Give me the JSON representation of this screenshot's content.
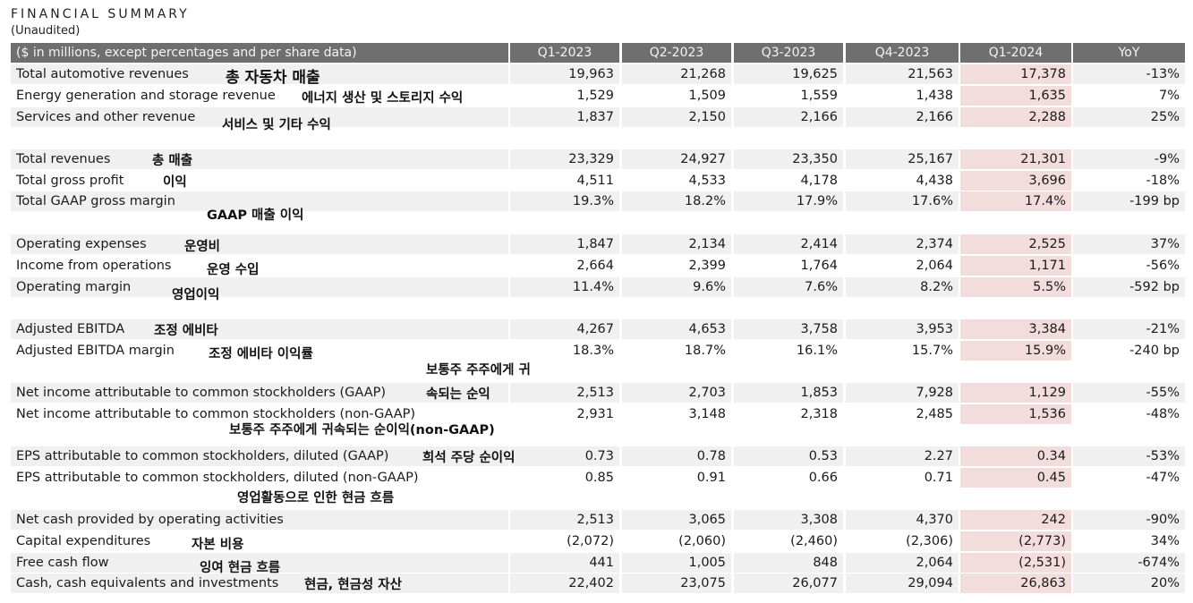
{
  "title": "FINANCIAL SUMMARY",
  "subtitle": "(Unaudited)",
  "header": {
    "label": "($ in millions, except percentages and per share data)",
    "columns": [
      "Q1-2023",
      "Q2-2023",
      "Q3-2023",
      "Q4-2023",
      "Q1-2024",
      "YoY"
    ]
  },
  "rows": [
    {
      "label": "Total automotive revenues",
      "values": [
        "19,963",
        "21,268",
        "19,625",
        "21,563",
        "17,378",
        "-13%"
      ],
      "note": "총 자동차 매출"
    },
    {
      "label": "Energy generation and storage revenue",
      "values": [
        "1,529",
        "1,509",
        "1,559",
        "1,438",
        "1,635",
        "7%"
      ],
      "note": "에너지 생산 및 스토리지 수익"
    },
    {
      "label": "Services and other revenue",
      "values": [
        "1,837",
        "2,150",
        "2,166",
        "2,166",
        "2,288",
        "25%"
      ],
      "note": "서비스 및 기타 수익"
    },
    {
      "label": "Total revenues",
      "values": [
        "23,329",
        "24,927",
        "23,350",
        "25,167",
        "21,301",
        "-9%"
      ],
      "note": "총 매출"
    },
    {
      "label": "Total gross profit",
      "values": [
        "4,511",
        "4,533",
        "4,178",
        "4,438",
        "3,696",
        "-18%"
      ],
      "note": "이익"
    },
    {
      "label": "Total GAAP gross margin",
      "values": [
        "19.3%",
        "18.2%",
        "17.9%",
        "17.6%",
        "17.4%",
        "-199 bp"
      ],
      "note": "GAAP 매출 이익"
    },
    {
      "label": "Operating expenses",
      "values": [
        "1,847",
        "2,134",
        "2,414",
        "2,374",
        "2,525",
        "37%"
      ],
      "note": "운영비"
    },
    {
      "label": "Income from operations",
      "values": [
        "2,664",
        "2,399",
        "1,764",
        "2,064",
        "1,171",
        "-56%"
      ],
      "note": "운영 수입"
    },
    {
      "label": "Operating margin",
      "values": [
        "11.4%",
        "9.6%",
        "7.6%",
        "8.2%",
        "5.5%",
        "-592 bp"
      ],
      "note": "영업이익"
    },
    {
      "label": "Adjusted EBITDA",
      "values": [
        "4,267",
        "4,653",
        "3,758",
        "3,953",
        "3,384",
        "-21%"
      ],
      "note": "조정 에비타"
    },
    {
      "label": "Adjusted EBITDA margin",
      "values": [
        "18.3%",
        "18.7%",
        "16.1%",
        "15.7%",
        "15.9%",
        "-240 bp"
      ],
      "note": "조정 에비타 이익률"
    },
    {
      "label": "Net income attributable to common stockholders (GAAP)",
      "values": [
        "2,513",
        "2,703",
        "1,853",
        "7,928",
        "1,129",
        "-55%"
      ],
      "note_top": "보통주 주주에게 귀",
      "note": "속되는 순익"
    },
    {
      "label": "Net income attributable to common stockholders (non-GAAP)",
      "values": [
        "2,931",
        "3,148",
        "2,318",
        "2,485",
        "1,536",
        "-48%"
      ],
      "note": "보통주 주주에게 귀속되는 순이익(non-GAAP)"
    },
    {
      "label": "EPS attributable to common stockholders, diluted (GAAP)",
      "values": [
        "0.73",
        "0.78",
        "0.53",
        "2.27",
        "0.34",
        "-53%"
      ],
      "note": "희석 주당 순이익"
    },
    {
      "label": "EPS attributable to common stockholders, diluted (non-GAAP)",
      "values": [
        "0.85",
        "0.91",
        "0.66",
        "0.71",
        "0.45",
        "-47%"
      ],
      "note": "영업활동으로 인한 현금 흐름"
    },
    {
      "label": "Net cash provided by operating activities",
      "values": [
        "2,513",
        "3,065",
        "3,308",
        "4,370",
        "242",
        "-90%"
      ],
      "note": ""
    },
    {
      "label": "Capital expenditures",
      "values": [
        "(2,072)",
        "(2,060)",
        "(2,460)",
        "(2,306)",
        "(2,773)",
        "34%"
      ],
      "note": "자본 비용"
    },
    {
      "label": "Free cash flow",
      "values": [
        "441",
        "1,005",
        "848",
        "2,064",
        "(2,531)",
        "-674%"
      ],
      "note": "잉여 현금 흐름"
    },
    {
      "label": "Cash, cash equivalents and investments",
      "values": [
        "22,402",
        "23,075",
        "26,077",
        "29,094",
        "26,863",
        "20%"
      ],
      "note": "현금, 현금성 자산"
    }
  ],
  "highlight_color": "#f3dcdc",
  "header_color": "#6f6f6f"
}
